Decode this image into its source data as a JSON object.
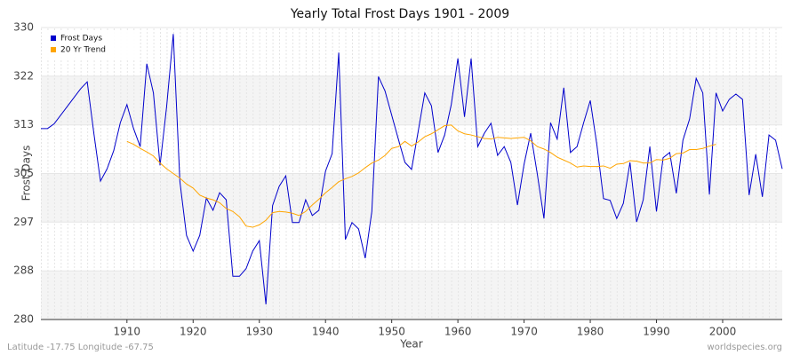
{
  "chart_data": {
    "type": "line",
    "title": "Yearly Total Frost Days 1901 - 2009",
    "x_label": "Year",
    "y_label": "Frost Days",
    "footer_left": "Latitude -17.75 Longitude -67.75",
    "footer_right": "worldspecies.org",
    "x": [
      1897,
      1898,
      1899,
      1900,
      1901,
      1902,
      1903,
      1904,
      1905,
      1906,
      1907,
      1908,
      1909,
      1910,
      1911,
      1912,
      1913,
      1914,
      1915,
      1916,
      1917,
      1918,
      1919,
      1920,
      1921,
      1922,
      1923,
      1924,
      1925,
      1926,
      1927,
      1928,
      1929,
      1930,
      1931,
      1932,
      1933,
      1934,
      1935,
      1936,
      1937,
      1938,
      1939,
      1940,
      1941,
      1942,
      1943,
      1944,
      1945,
      1946,
      1947,
      1948,
      1949,
      1950,
      1951,
      1952,
      1953,
      1954,
      1955,
      1956,
      1957,
      1958,
      1959,
      1960,
      1961,
      1962,
      1963,
      1964,
      1965,
      1966,
      1967,
      1968,
      1969,
      1970,
      1971,
      1972,
      1973,
      1974,
      1975,
      1976,
      1977,
      1978,
      1979,
      1980,
      1981,
      1982,
      1983,
      1984,
      1985,
      1986,
      1987,
      1988,
      1989,
      1990,
      1991,
      1992,
      1993,
      1994,
      1995,
      1996,
      1997,
      1998,
      1999,
      2000,
      2001,
      2002,
      2003,
      2004,
      2005,
      2006,
      2007,
      2008,
      2009
    ],
    "series": [
      {
        "name": "Frost Days",
        "color": "#0000cc",
        "values": [
          312.7,
          312.7,
          313.5,
          315,
          316.5,
          318,
          319.5,
          320.7,
          311.9,
          303.7,
          305.8,
          308.9,
          313.7,
          316.8,
          312.7,
          309.6,
          323.8,
          318.8,
          306.4,
          316.5,
          328.9,
          303.6,
          294.4,
          291.7,
          294.4,
          300.8,
          298.7,
          301.7,
          300.5,
          287.4,
          287.4,
          288.7,
          291.7,
          293.5,
          282.6,
          299.5,
          302.8,
          304.6,
          296.6,
          296.6,
          300.5,
          297.8,
          298.7,
          305.4,
          308.4,
          325.7,
          293.7,
          296.6,
          295.5,
          290.5,
          298.5,
          321.6,
          319.1,
          315.0,
          310.9,
          306.9,
          305.7,
          312.2,
          318.8,
          316.6,
          308.6,
          311.6,
          316.8,
          324.7,
          314.7,
          324.7,
          309.6,
          311.9,
          313.6,
          308.1,
          309.6,
          306.9,
          299.6,
          306.6,
          311.9,
          304.9,
          297.3,
          313.7,
          310.9,
          319.7,
          308.6,
          309.6,
          313.7,
          317.5,
          309.9,
          300.7,
          300.4,
          297.3,
          299.9,
          306.9,
          296.7,
          300.5,
          309.6,
          298.5,
          307.7,
          308.6,
          301.6,
          310.7,
          314.3,
          321.3,
          318.8,
          301.4,
          318.8,
          315.7,
          317.7,
          318.6,
          317.7,
          301.3,
          308.3,
          301.0,
          311.6,
          310.7,
          305.8
        ]
      },
      {
        "name": "20 Yr Trend",
        "color": "#ffa500",
        "values": [
          null,
          null,
          null,
          null,
          null,
          null,
          null,
          null,
          null,
          null,
          null,
          null,
          null,
          310.5,
          310,
          309.3,
          308.7,
          308,
          306.8,
          305.8,
          305,
          304.2,
          303.2,
          302.5,
          301.3,
          300.8,
          300.5,
          300,
          299,
          298.5,
          297.6,
          296,
          295.8,
          296.2,
          297,
          298.3,
          298.5,
          298.4,
          298.2,
          297.8,
          298.5,
          299.6,
          300.6,
          301.7,
          302.6,
          303.6,
          304.1,
          304.5,
          305.1,
          306,
          306.8,
          307.3,
          308.1,
          309.3,
          309.6,
          310.5,
          309.7,
          310.4,
          311.3,
          311.8,
          312.5,
          313.2,
          313.3,
          312.3,
          311.8,
          311.6,
          311.3,
          311,
          310.9,
          311.2,
          311.1,
          311,
          311.1,
          311.2,
          310.6,
          309.6,
          309.2,
          308.6,
          307.8,
          307.3,
          306.8,
          306.1,
          306.3,
          306.2,
          306.2,
          306.3,
          305.9,
          306.6,
          306.7,
          307.2,
          307.1,
          306.8,
          306.8,
          307.4,
          307.3,
          307.6,
          308.4,
          308.5,
          309.1,
          309.1,
          309.3,
          309.7,
          310,
          null,
          null,
          null,
          null,
          null,
          null,
          null,
          null,
          null,
          null
        ]
      }
    ],
    "xlim": [
      1897,
      2009
    ],
    "xticks": [
      1910,
      1920,
      1930,
      1940,
      1950,
      1960,
      1970,
      1980,
      1990,
      2000
    ],
    "ylim": [
      280,
      330
    ],
    "yticks": [
      280,
      {
        "value": 288.33,
        "label": "288"
      },
      {
        "value": 296.67,
        "label": "297"
      },
      305,
      {
        "value": 313.33,
        "label": "313"
      },
      {
        "value": 321.67,
        "label": "322"
      },
      330
    ],
    "grid": true,
    "legend": "upper left"
  }
}
